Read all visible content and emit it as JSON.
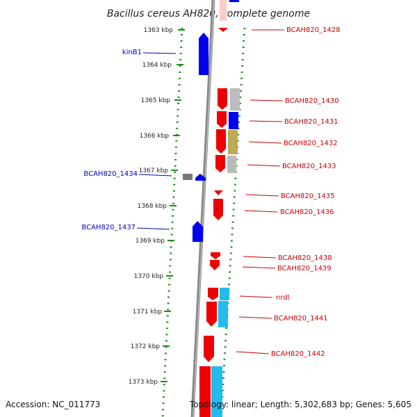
{
  "title": "Bacillus cereus AH820, complete genome",
  "accession": "Accession: NC_011773",
  "topology": "Topology: linear; Length: 5,302,683 bp; Genes: 5,605",
  "colors": {
    "forward_strand": "#ee0000",
    "reverse_strand": "#0000ee",
    "genome_line": "#888888",
    "dotted_guide": "#1a8c1a",
    "label_forward": "#cc0000",
    "label_reverse": "#0000bb",
    "cyan_track": "#22bbee",
    "gray_track": "#bbbbbb",
    "olive_track": "#bbaa55"
  },
  "ticks": [
    "1363 kbp",
    "1364 kbp",
    "1365 kbp",
    "1366 kbp",
    "1367 kbp",
    "1368 kbp",
    "1369 kbp",
    "1370 kbp",
    "1371 kbp",
    "1372 kbp",
    "1373 kbp"
  ],
  "labels_reverse": [
    "kinB1",
    "BCAH820_1434",
    "BCAH820_1437"
  ],
  "labels_forward": [
    "BCAH820_1428",
    "BCAH820_1430",
    "BCAH820_1431",
    "BCAH820_1432",
    "BCAH820_1433",
    "BCAH820_1435",
    "BCAH820_1436",
    "BCAH820_1438",
    "BCAH820_1439",
    "nrdI",
    "BCAH820_1441",
    "BCAH820_1442"
  ]
}
